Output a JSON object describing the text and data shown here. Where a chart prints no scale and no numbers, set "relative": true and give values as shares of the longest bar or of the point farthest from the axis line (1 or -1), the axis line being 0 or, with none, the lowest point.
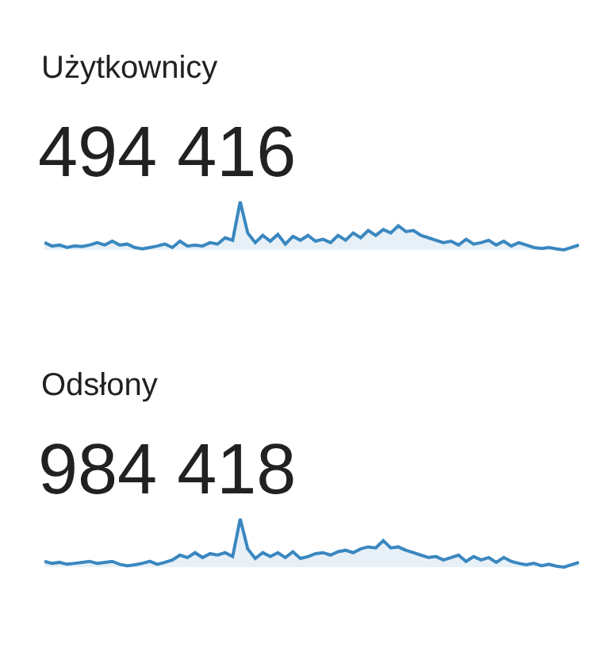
{
  "chart_data": [
    {
      "type": "area",
      "title": "Użytkownicy",
      "subtitle": "494 416",
      "relative": true,
      "categories": [
        null,
        null,
        null,
        null,
        null,
        null,
        null,
        null,
        null,
        null,
        null,
        null,
        null,
        null,
        null,
        null,
        null,
        null,
        null,
        null,
        null,
        null,
        null,
        null,
        null,
        null,
        null,
        null,
        null,
        null,
        null,
        null,
        null,
        null,
        null,
        null,
        null,
        null,
        null,
        null,
        null,
        null,
        null,
        null,
        null,
        null,
        null,
        null,
        null,
        null,
        null,
        null,
        null,
        null,
        null,
        null,
        null,
        null,
        null,
        null,
        null,
        null,
        null,
        null,
        null,
        null,
        null,
        null,
        null,
        null,
        null,
        null
      ],
      "series": [
        {
          "color": "#3a87c0",
          "values": [
            0.15,
            0.08,
            0.1,
            0.05,
            0.08,
            0.07,
            0.1,
            0.15,
            0.1,
            0.18,
            0.1,
            0.12,
            0.05,
            0.02,
            0.05,
            0.08,
            0.12,
            0.05,
            0.18,
            0.08,
            0.1,
            0.08,
            0.15,
            0.12,
            0.25,
            0.2,
            1,
            0.35,
            0.15,
            0.3,
            0.18,
            0.32,
            0.12,
            0.28,
            0.2,
            0.3,
            0.18,
            0.22,
            0.15,
            0.3,
            0.2,
            0.35,
            0.25,
            0.4,
            0.3,
            0.42,
            0.35,
            0.5,
            0.38,
            0.4,
            0.3,
            0.25,
            0.2,
            0.15,
            0.18,
            0.1,
            0.22,
            0.12,
            0.15,
            0.2,
            0.1,
            0.18,
            0.08,
            0.15,
            0.1,
            0.05,
            0.03,
            0.05,
            0.02,
            0,
            0.05,
            0.1
          ]
        }
      ]
    },
    {
      "type": "area",
      "title": "Odsłony",
      "subtitle": "984 418",
      "relative": true,
      "categories": [
        null,
        null,
        null,
        null,
        null,
        null,
        null,
        null,
        null,
        null,
        null,
        null,
        null,
        null,
        null,
        null,
        null,
        null,
        null,
        null,
        null,
        null,
        null,
        null,
        null,
        null,
        null,
        null,
        null,
        null,
        null,
        null,
        null,
        null,
        null,
        null,
        null,
        null,
        null,
        null,
        null,
        null,
        null,
        null,
        null,
        null,
        null,
        null,
        null,
        null,
        null,
        null,
        null,
        null,
        null,
        null,
        null,
        null,
        null,
        null,
        null,
        null,
        null,
        null,
        null,
        null,
        null,
        null,
        null,
        null,
        null,
        null
      ],
      "series": [
        {
          "color": "#3a87c0",
          "values": [
            0.12,
            0.08,
            0.1,
            0.06,
            0.08,
            0.1,
            0.12,
            0.08,
            0.1,
            0.12,
            0.06,
            0.03,
            0.05,
            0.08,
            0.12,
            0.06,
            0.1,
            0.15,
            0.25,
            0.2,
            0.3,
            0.2,
            0.28,
            0.25,
            0.3,
            0.22,
            1,
            0.38,
            0.18,
            0.3,
            0.22,
            0.3,
            0.2,
            0.32,
            0.18,
            0.22,
            0.28,
            0.3,
            0.25,
            0.32,
            0.35,
            0.3,
            0.38,
            0.42,
            0.4,
            0.55,
            0.4,
            0.42,
            0.35,
            0.3,
            0.25,
            0.2,
            0.22,
            0.15,
            0.2,
            0.25,
            0.12,
            0.22,
            0.15,
            0.2,
            0.1,
            0.2,
            0.12,
            0.08,
            0.05,
            0.08,
            0.03,
            0.06,
            0.02,
            0,
            0.05,
            0.1
          ]
        }
      ]
    }
  ]
}
